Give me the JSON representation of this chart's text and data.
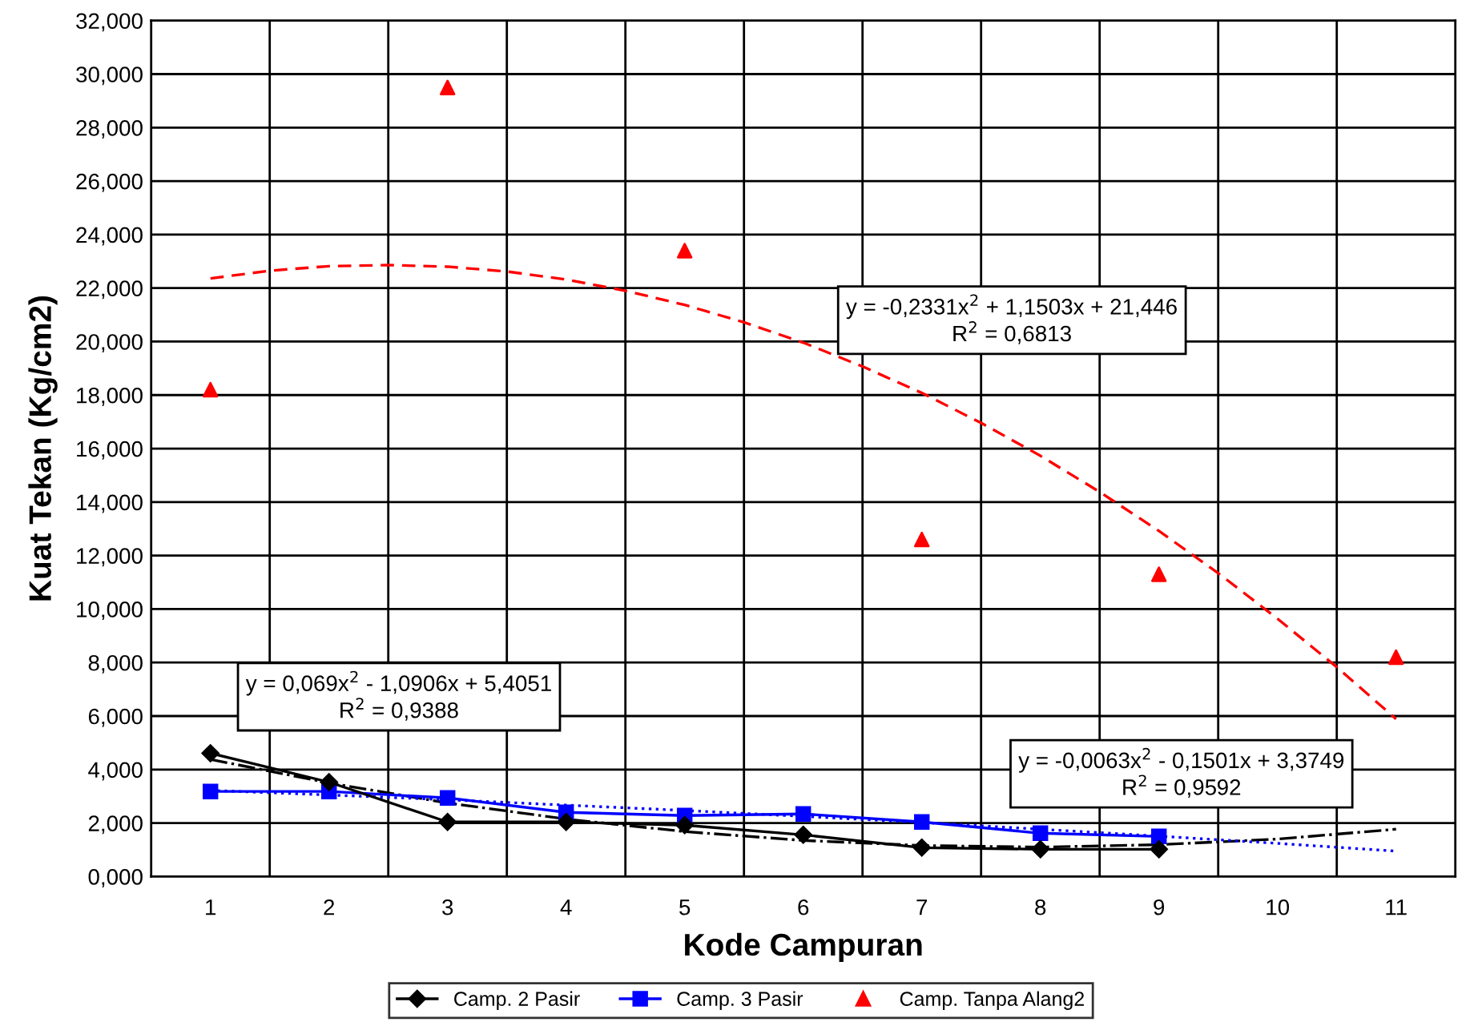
{
  "chart_data": {
    "type": "line",
    "xlabel": "Kode Campuran",
    "ylabel": "Kuat Tekan (Kg/cm2)",
    "xlim": [
      0.5,
      11.5
    ],
    "xticks": [
      1,
      2,
      3,
      4,
      5,
      6,
      7,
      8,
      9,
      10,
      11
    ],
    "ylim": [
      0,
      32
    ],
    "yticks": [
      {
        "value": 0,
        "label": "0,000"
      },
      {
        "value": 2,
        "label": "2,000"
      },
      {
        "value": 4,
        "label": "4,000"
      },
      {
        "value": 6,
        "label": "6,000"
      },
      {
        "value": 8,
        "label": "8,000"
      },
      {
        "value": 10,
        "label": "10,000"
      },
      {
        "value": 12,
        "label": "12,000"
      },
      {
        "value": 14,
        "label": "14,000"
      },
      {
        "value": 16,
        "label": "16,000"
      },
      {
        "value": 18,
        "label": "18,000"
      },
      {
        "value": 20,
        "label": "20,000"
      },
      {
        "value": 22,
        "label": "22,000"
      },
      {
        "value": 24,
        "label": "24,000"
      },
      {
        "value": 26,
        "label": "26,000"
      },
      {
        "value": 28,
        "label": "28,000"
      },
      {
        "value": 30,
        "label": "30,000"
      },
      {
        "value": 32,
        "label": "32,000"
      }
    ],
    "grid": true,
    "legend": "bottom",
    "series": [
      {
        "name": "Camp. 2 Pasir",
        "color": "#000000",
        "marker": "diamond",
        "line_style": "solid",
        "x": [
          1,
          2,
          3,
          4,
          5,
          6,
          7,
          8,
          9
        ],
        "values": [
          4.61,
          3.53,
          2.04,
          2.04,
          1.92,
          1.56,
          1.08,
          1.02,
          1.02
        ]
      },
      {
        "name": "Camp. 3 Pasir",
        "color": "#0000ff",
        "marker": "square",
        "line_style": "solid",
        "x": [
          1,
          2,
          3,
          4,
          5,
          6,
          7,
          8,
          9
        ],
        "values": [
          3.18,
          3.18,
          2.94,
          2.4,
          2.28,
          2.34,
          2.04,
          1.62,
          1.5
        ]
      },
      {
        "name": "Camp. Tanpa Alang2",
        "type": "scatter",
        "color": "#ff0000",
        "marker": "triangle",
        "x": [
          1,
          3,
          5,
          7,
          9,
          11
        ],
        "values": [
          18.2,
          29.5,
          23.4,
          12.6,
          11.3,
          8.2
        ]
      },
      {
        "type": "line",
        "color": "#000000",
        "marker": "none",
        "line_style": "dashdot",
        "x": [
          1,
          2,
          3,
          4,
          5,
          6,
          7,
          8,
          9,
          10,
          11
        ],
        "values": [
          4.38,
          3.5,
          2.75,
          2.15,
          1.68,
          1.35,
          1.16,
          1.1,
          1.19,
          1.4,
          1.77
        ]
      },
      {
        "type": "line",
        "color": "#0000ff",
        "marker": "none",
        "line_style": "dotted",
        "x": [
          1,
          2,
          3,
          4,
          5,
          6,
          7,
          8,
          9,
          10,
          11
        ],
        "values": [
          3.22,
          3.05,
          2.87,
          2.67,
          2.47,
          2.25,
          2.02,
          1.77,
          1.51,
          1.24,
          0.95
        ]
      },
      {
        "type": "line",
        "color": "#ff0000",
        "marker": "none",
        "line_style": "dashed",
        "x": [
          1,
          1.5,
          2,
          2.5,
          3,
          3.5,
          4,
          4.5,
          5,
          5.5,
          6,
          6.5,
          7,
          7.5,
          8,
          8.5,
          9,
          9.5,
          10,
          10.5,
          11
        ],
        "values": [
          22.36,
          22.65,
          22.82,
          22.86,
          22.8,
          22.62,
          22.32,
          21.9,
          21.37,
          20.72,
          19.96,
          19.07,
          18.08,
          16.96,
          15.73,
          14.38,
          12.92,
          11.34,
          9.64,
          7.83,
          5.89
        ]
      }
    ],
    "annotations": [
      "y = 0,069x$^{2}$ - 1,0906x + 5,4051\nR$^{2}$ = 0,9388",
      "y = -0,0063x$^{2}$ - 0,1501x + 3,3749\nR$^{2}$ = 0,9592",
      "y = -0,2331x$^{2}$ + 1,1503x + 21,446\nR$^{2}$ = 0,6813"
    ]
  }
}
